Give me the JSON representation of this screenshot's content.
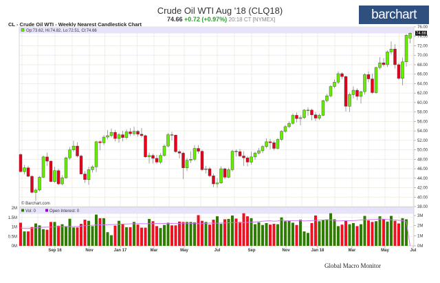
{
  "header": {
    "title": "Crude Oil WTI Aug '18 (CLQ18)",
    "last": "74.66",
    "change": "+0.72 (+0.97%)",
    "time": "20:18 CT [NYMEX]",
    "logo": "barchart"
  },
  "footer": "Global Macro Monitor",
  "chart_data": [
    {
      "type": "candlestick",
      "title": "CL - Crude Oil WTI - Weekly Nearest Candlestick Chart",
      "legend": "Op:73.62, Hi:74.82, Lo:72.51, Cl:74.66",
      "watermark": "© Barchart.com",
      "last_price_label": "74.66",
      "ylim": [
        38,
        76
      ],
      "y_ticks": [
        "38.00",
        "40.00",
        "42.00",
        "44.00",
        "46.00",
        "48.00",
        "50.00",
        "52.00",
        "54.00",
        "56.00",
        "58.00",
        "60.00",
        "62.00",
        "64.00",
        "66.00",
        "68.00",
        "70.00",
        "72.00",
        "74.00",
        "76.00"
      ],
      "x_ticks": [
        "Sep 16",
        "Nov",
        "Jan 17",
        "Mar",
        "May",
        "Jul",
        "Sep",
        "Nov",
        "Jan 18",
        "Mar",
        "May",
        "Jul"
      ],
      "grid": true,
      "colors": {
        "up": "#66ee00",
        "down": "#e8001c",
        "grid": "#ece9e0",
        "legend_bg": "#e6e3fa"
      },
      "ohlc": [
        [
          49.0,
          49.3,
          45.2,
          45.4
        ],
        [
          45.4,
          46.8,
          44.8,
          46.2
        ],
        [
          46.2,
          46.6,
          44.2,
          44.4
        ],
        [
          44.4,
          44.6,
          40.8,
          41.0
        ],
        [
          41.0,
          41.9,
          39.2,
          41.5
        ],
        [
          41.5,
          44.5,
          41.2,
          44.2
        ],
        [
          44.2,
          48.8,
          44.0,
          48.5
        ],
        [
          48.5,
          49.4,
          46.6,
          47.6
        ],
        [
          47.6,
          47.8,
          43.1,
          43.3
        ],
        [
          43.3,
          46.4,
          43.0,
          45.6
        ],
        [
          45.6,
          46.0,
          42.5,
          42.8
        ],
        [
          42.8,
          44.6,
          42.5,
          44.1
        ],
        [
          44.1,
          48.6,
          43.9,
          48.3
        ],
        [
          48.3,
          50.6,
          47.9,
          50.0
        ],
        [
          50.0,
          51.9,
          49.6,
          50.8
        ],
        [
          50.8,
          51.6,
          48.4,
          48.7
        ],
        [
          48.7,
          49.0,
          44.8,
          44.9
        ],
        [
          44.9,
          45.5,
          43.0,
          43.7
        ],
        [
          43.7,
          46.4,
          42.6,
          45.8
        ],
        [
          45.8,
          46.8,
          45.2,
          46.4
        ],
        [
          46.4,
          51.9,
          45.3,
          51.7
        ],
        [
          51.7,
          52.0,
          49.9,
          51.5
        ],
        [
          51.5,
          53.1,
          51.0,
          52.7
        ],
        [
          52.7,
          54.2,
          52.2,
          53.0
        ],
        [
          53.0,
          54.5,
          52.6,
          53.7
        ],
        [
          53.7,
          54.2,
          51.8,
          52.4
        ],
        [
          52.4,
          53.6,
          51.5,
          53.2
        ],
        [
          53.2,
          54.0,
          51.8,
          52.6
        ],
        [
          52.6,
          54.3,
          52.2,
          53.8
        ],
        [
          53.8,
          54.6,
          52.9,
          53.4
        ],
        [
          53.4,
          54.9,
          53.0,
          53.9
        ],
        [
          53.9,
          54.2,
          52.8,
          53.3
        ],
        [
          53.3,
          54.6,
          52.6,
          53.0
        ],
        [
          53.0,
          53.2,
          48.3,
          48.5
        ],
        [
          48.5,
          49.4,
          47.1,
          48.8
        ],
        [
          48.8,
          49.2,
          47.1,
          48.2
        ],
        [
          48.2,
          48.9,
          47.0,
          47.4
        ],
        [
          47.4,
          49.3,
          47.0,
          48.8
        ],
        [
          48.8,
          51.1,
          48.5,
          50.8
        ],
        [
          50.8,
          53.6,
          50.5,
          53.2
        ],
        [
          53.2,
          53.8,
          52.0,
          53.1
        ],
        [
          53.1,
          53.2,
          49.4,
          49.6
        ],
        [
          49.6,
          50.0,
          48.2,
          49.3
        ],
        [
          49.3,
          49.6,
          43.8,
          46.2
        ],
        [
          46.2,
          48.3,
          45.5,
          47.8
        ],
        [
          47.8,
          49.7,
          47.2,
          48.0
        ],
        [
          48.0,
          51.0,
          47.6,
          50.3
        ],
        [
          50.3,
          51.0,
          49.2,
          49.7
        ],
        [
          49.7,
          50.0,
          45.5,
          45.8
        ],
        [
          45.8,
          46.6,
          45.0,
          46.0
        ],
        [
          46.0,
          46.4,
          44.2,
          44.5
        ],
        [
          44.5,
          45.0,
          42.1,
          42.8
        ],
        [
          42.8,
          44.0,
          42.0,
          43.0
        ],
        [
          43.0,
          46.5,
          42.8,
          46.0
        ],
        [
          46.0,
          46.2,
          43.8,
          44.2
        ],
        [
          44.2,
          46.2,
          44.0,
          45.8
        ],
        [
          45.8,
          50.0,
          45.4,
          49.7
        ],
        [
          49.7,
          50.1,
          48.6,
          49.6
        ],
        [
          49.6,
          50.2,
          48.5,
          48.7
        ],
        [
          48.7,
          49.7,
          46.6,
          48.3
        ],
        [
          48.3,
          48.7,
          46.5,
          47.4
        ],
        [
          47.4,
          49.6,
          46.9,
          48.5
        ],
        [
          48.5,
          49.6,
          47.9,
          49.3
        ],
        [
          49.3,
          50.4,
          49.0,
          49.8
        ],
        [
          49.8,
          51.0,
          49.3,
          50.7
        ],
        [
          50.7,
          52.4,
          50.3,
          51.7
        ],
        [
          51.7,
          52.3,
          50.1,
          51.5
        ],
        [
          51.5,
          52.0,
          49.9,
          50.3
        ],
        [
          50.3,
          52.5,
          50.1,
          52.2
        ],
        [
          52.2,
          54.1,
          51.9,
          53.9
        ],
        [
          53.9,
          55.2,
          53.6,
          54.9
        ],
        [
          54.9,
          56.0,
          54.6,
          55.6
        ],
        [
          55.6,
          57.7,
          55.3,
          57.3
        ],
        [
          57.3,
          57.9,
          55.8,
          56.6
        ],
        [
          56.6,
          57.3,
          55.2,
          56.8
        ],
        [
          56.8,
          58.6,
          56.5,
          58.4
        ],
        [
          58.4,
          59.0,
          57.2,
          58.4
        ],
        [
          58.4,
          58.7,
          56.2,
          57.4
        ],
        [
          57.4,
          58.0,
          56.1,
          56.7
        ],
        [
          56.7,
          57.7,
          56.3,
          57.3
        ],
        [
          57.3,
          60.6,
          57.1,
          60.4
        ],
        [
          60.4,
          61.8,
          60.0,
          61.4
        ],
        [
          61.4,
          63.7,
          61.1,
          63.4
        ],
        [
          63.4,
          64.9,
          63.0,
          64.3
        ],
        [
          64.3,
          66.6,
          63.9,
          66.1
        ],
        [
          66.1,
          66.4,
          64.9,
          65.5
        ],
        [
          65.5,
          65.7,
          58.1,
          59.2
        ],
        [
          59.2,
          62.1,
          58.0,
          61.7
        ],
        [
          61.7,
          63.4,
          60.9,
          62.6
        ],
        [
          62.6,
          63.0,
          60.5,
          61.3
        ],
        [
          61.3,
          62.5,
          59.8,
          62.3
        ],
        [
          62.3,
          66.2,
          61.7,
          65.9
        ],
        [
          65.9,
          66.6,
          64.3,
          65.0
        ],
        [
          65.0,
          66.1,
          61.8,
          62.1
        ],
        [
          62.1,
          67.6,
          61.9,
          67.4
        ],
        [
          67.4,
          69.6,
          67.0,
          68.4
        ],
        [
          68.4,
          69.4,
          67.6,
          68.0
        ],
        [
          68.0,
          71.0,
          67.5,
          70.7
        ],
        [
          70.7,
          72.9,
          70.2,
          71.3
        ],
        [
          71.3,
          72.3,
          67.2,
          68.0
        ],
        [
          68.0,
          68.4,
          64.8,
          65.1
        ],
        [
          65.1,
          69.5,
          63.6,
          68.6
        ],
        [
          68.6,
          74.5,
          67.6,
          74.2
        ],
        [
          73.62,
          74.82,
          72.51,
          74.66
        ]
      ]
    },
    {
      "type": "bar",
      "legend": [
        {
          "name": "Vol: 0",
          "color": "#2e7d00"
        },
        {
          "name": "Open Interest: 0",
          "color": "#9900cc"
        }
      ],
      "ylim_left": [
        0,
        2
      ],
      "y_ticks_left": [
        "0M",
        "0.5M",
        "1M",
        "1.5M",
        "2M"
      ],
      "ylim_right": [
        0,
        3
      ],
      "y_ticks_right": [
        "0M",
        "1M",
        "2M",
        "3M"
      ],
      "colors": {
        "up": "#2e7d00",
        "down": "#ee1122",
        "open_interest": "#cc77ee"
      },
      "volume_millions": [
        1.22,
        0.76,
        0.76,
        0.99,
        1.18,
        1.08,
        0.88,
        0.85,
        1.26,
        1.26,
        1.06,
        1.14,
        1.04,
        1.43,
        0.97,
        0.97,
        1.16,
        1.38,
        1.32,
        1.04,
        1.65,
        1.46,
        1.46,
        0.72,
        0.56,
        1.07,
        1.32,
        1.15,
        0.98,
        0.98,
        1.26,
        1.12,
        0.96,
        0.96,
        1.42,
        1.3,
        1.04,
        0.94,
        1.1,
        1.22,
        1.08,
        1.08,
        1.28,
        1.26,
        1.26,
        1.26,
        1.24,
        1.62,
        1.32,
        1.26,
        1.12,
        1.38,
        1.56,
        1.16,
        1.4,
        1.42,
        1.6,
        1.44,
        1.26,
        1.72,
        1.56,
        1.46,
        1.14,
        1.24,
        1.1,
        1.2,
        1.12,
        1.16,
        1.14,
        1.5,
        1.3,
        1.32,
        1.22,
        1.1,
        1.38,
        0.76,
        0.68,
        1.2,
        1.6,
        1.3,
        1.38,
        1.4,
        1.72,
        1.4,
        1.04,
        1.12,
        1.34,
        1.14,
        1.2,
        1.04,
        1.14,
        1.58,
        1.34,
        1.26,
        1.3,
        1.56,
        1.4,
        1.28,
        1.58,
        1.32,
        1.18,
        1.46,
        1.4,
        0.0
      ],
      "open_interest_millions": [
        1.78,
        1.72,
        1.72,
        1.75,
        1.8,
        1.82,
        1.84,
        1.85,
        1.86,
        1.88,
        1.88,
        1.9,
        1.9,
        1.92,
        1.9,
        1.92,
        1.95,
        2.0,
        2.02,
        2.04,
        2.06,
        2.08,
        2.08,
        2.1,
        2.1,
        2.12,
        2.14,
        2.16,
        2.16,
        2.18,
        2.18,
        2.2,
        2.2,
        2.18,
        2.2,
        2.2,
        2.22,
        2.2,
        2.22,
        2.2,
        2.22,
        2.2,
        2.22,
        2.24,
        2.24,
        2.22,
        2.24,
        2.2,
        2.2,
        2.24,
        2.26,
        2.24,
        2.24,
        2.26,
        2.26,
        2.28,
        2.3,
        2.3,
        2.3,
        2.3,
        2.32,
        2.34,
        2.36,
        2.4,
        2.44,
        2.46,
        2.48,
        2.44,
        2.46,
        2.56,
        2.5,
        2.48,
        2.5,
        2.5,
        2.5,
        2.46,
        2.48,
        2.5,
        2.52,
        2.54,
        2.56,
        2.58,
        2.56,
        2.5,
        2.46,
        2.48,
        2.5,
        2.48,
        2.5,
        2.52,
        2.56,
        2.58,
        2.6,
        2.6,
        2.62,
        2.66,
        2.64,
        2.6,
        2.58,
        2.56,
        2.52,
        2.5,
        2.4,
        0.0
      ]
    }
  ]
}
